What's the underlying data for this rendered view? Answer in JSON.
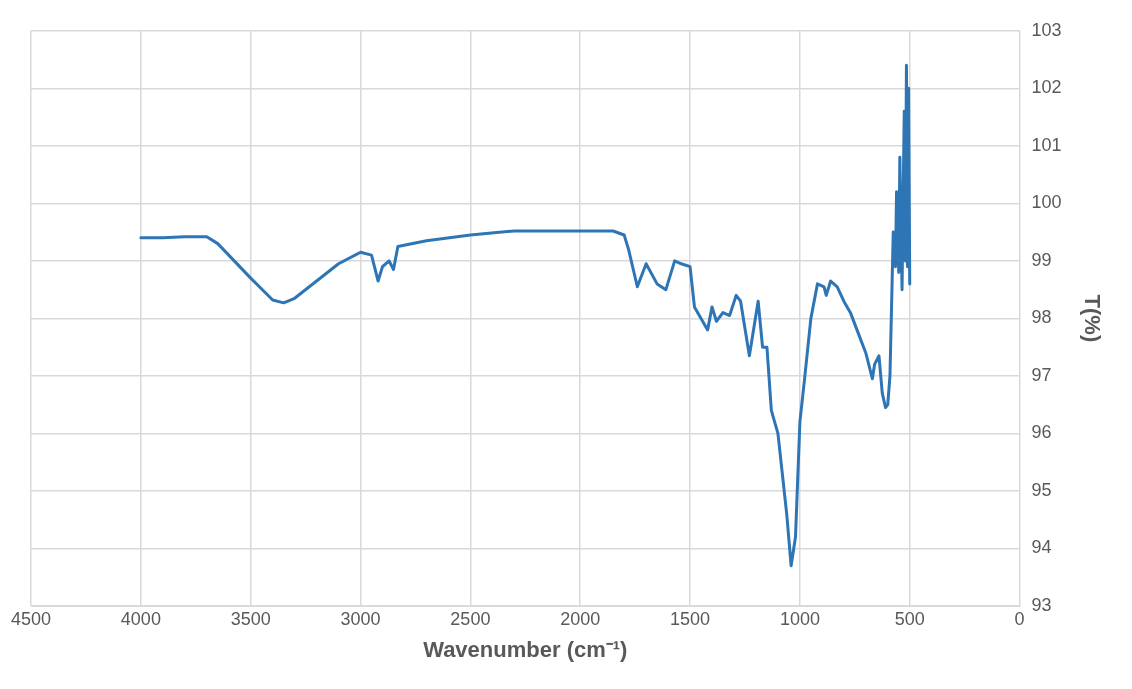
{
  "chart_data": {
    "type": "line",
    "xlabel": "Wavenumber (cm⁻¹)",
    "ylabel": "T(%)",
    "xlim": [
      4500,
      0
    ],
    "xticks": [
      4500,
      4000,
      3500,
      3000,
      2500,
      2000,
      1500,
      1000,
      500,
      0
    ],
    "ylim": [
      93,
      103
    ],
    "yticks": [
      93,
      94,
      95,
      96,
      97,
      98,
      99,
      100,
      101,
      102,
      103
    ],
    "grid": true,
    "legend": false,
    "marker": "none",
    "line_style": "solid",
    "series": [
      {
        "color": "#2e75b6",
        "x": [
          4000,
          3900,
          3800,
          3700,
          3650,
          3600,
          3500,
          3400,
          3350,
          3300,
          3200,
          3100,
          3000,
          2950,
          2920,
          2900,
          2870,
          2850,
          2830,
          2700,
          2500,
          2300,
          2000,
          1850,
          1800,
          1780,
          1740,
          1700,
          1650,
          1610,
          1570,
          1540,
          1500,
          1480,
          1450,
          1420,
          1400,
          1380,
          1350,
          1320,
          1290,
          1270,
          1230,
          1190,
          1170,
          1150,
          1130,
          1100,
          1060,
          1040,
          1020,
          1000,
          980,
          950,
          920,
          890,
          880,
          860,
          830,
          800,
          770,
          740,
          700,
          680,
          670,
          660,
          640,
          625,
          610,
          600,
          590,
          575,
          565,
          560,
          550,
          545,
          535,
          525,
          520,
          515,
          510,
          505,
          500
        ],
        "values": [
          99.4,
          99.4,
          99.42,
          99.42,
          99.3,
          99.1,
          98.7,
          98.32,
          98.27,
          98.35,
          98.65,
          98.95,
          99.15,
          99.1,
          98.65,
          98.9,
          99.0,
          98.85,
          99.25,
          99.35,
          99.45,
          99.52,
          99.52,
          99.52,
          99.45,
          99.2,
          98.55,
          98.95,
          98.6,
          98.5,
          99.0,
          98.95,
          98.9,
          98.2,
          98.0,
          97.8,
          98.2,
          97.95,
          98.1,
          98.05,
          98.4,
          98.3,
          97.35,
          98.3,
          97.5,
          97.5,
          96.4,
          96.0,
          94.6,
          93.7,
          94.2,
          96.2,
          96.9,
          98.0,
          98.6,
          98.55,
          98.4,
          98.65,
          98.55,
          98.3,
          98.1,
          97.8,
          97.4,
          97.1,
          96.95,
          97.2,
          97.35,
          96.7,
          96.45,
          96.5,
          97.0,
          99.5,
          98.9,
          100.2,
          98.8,
          100.8,
          98.5,
          101.6,
          99.0,
          102.4,
          98.9,
          102.0,
          98.6
        ]
      }
    ]
  }
}
